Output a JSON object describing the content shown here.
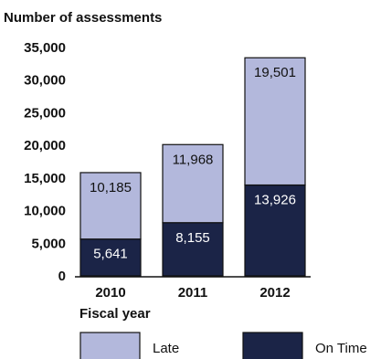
{
  "chart_data": {
    "type": "bar",
    "stacked": true,
    "ylabel": "Number of assessments",
    "xlabel": "Fiscal year",
    "categories": [
      "2010",
      "2011",
      "2012"
    ],
    "ylim": [
      0,
      35000
    ],
    "yticks": [
      "35,000",
      "30,000",
      "25,000",
      "20,000",
      "15,000",
      "10,000",
      "5,000",
      "0"
    ],
    "ytick_values": [
      35000,
      30000,
      25000,
      20000,
      15000,
      10000,
      5000,
      0
    ],
    "series": [
      {
        "name": "On Time",
        "values": [
          5641,
          8155,
          13926
        ],
        "labels": [
          "5,641",
          "8,155",
          "13,926"
        ],
        "color": "#1b2447",
        "label_color": "#ffffff"
      },
      {
        "name": "Late",
        "values": [
          10185,
          11968,
          19501
        ],
        "labels": [
          "10,185",
          "11,968",
          "19,501"
        ],
        "color": "#b3b8dc",
        "label_color": "#111111"
      }
    ],
    "legend": [
      "Late",
      "On Time"
    ],
    "grid": false,
    "legend_position": "bottom"
  }
}
